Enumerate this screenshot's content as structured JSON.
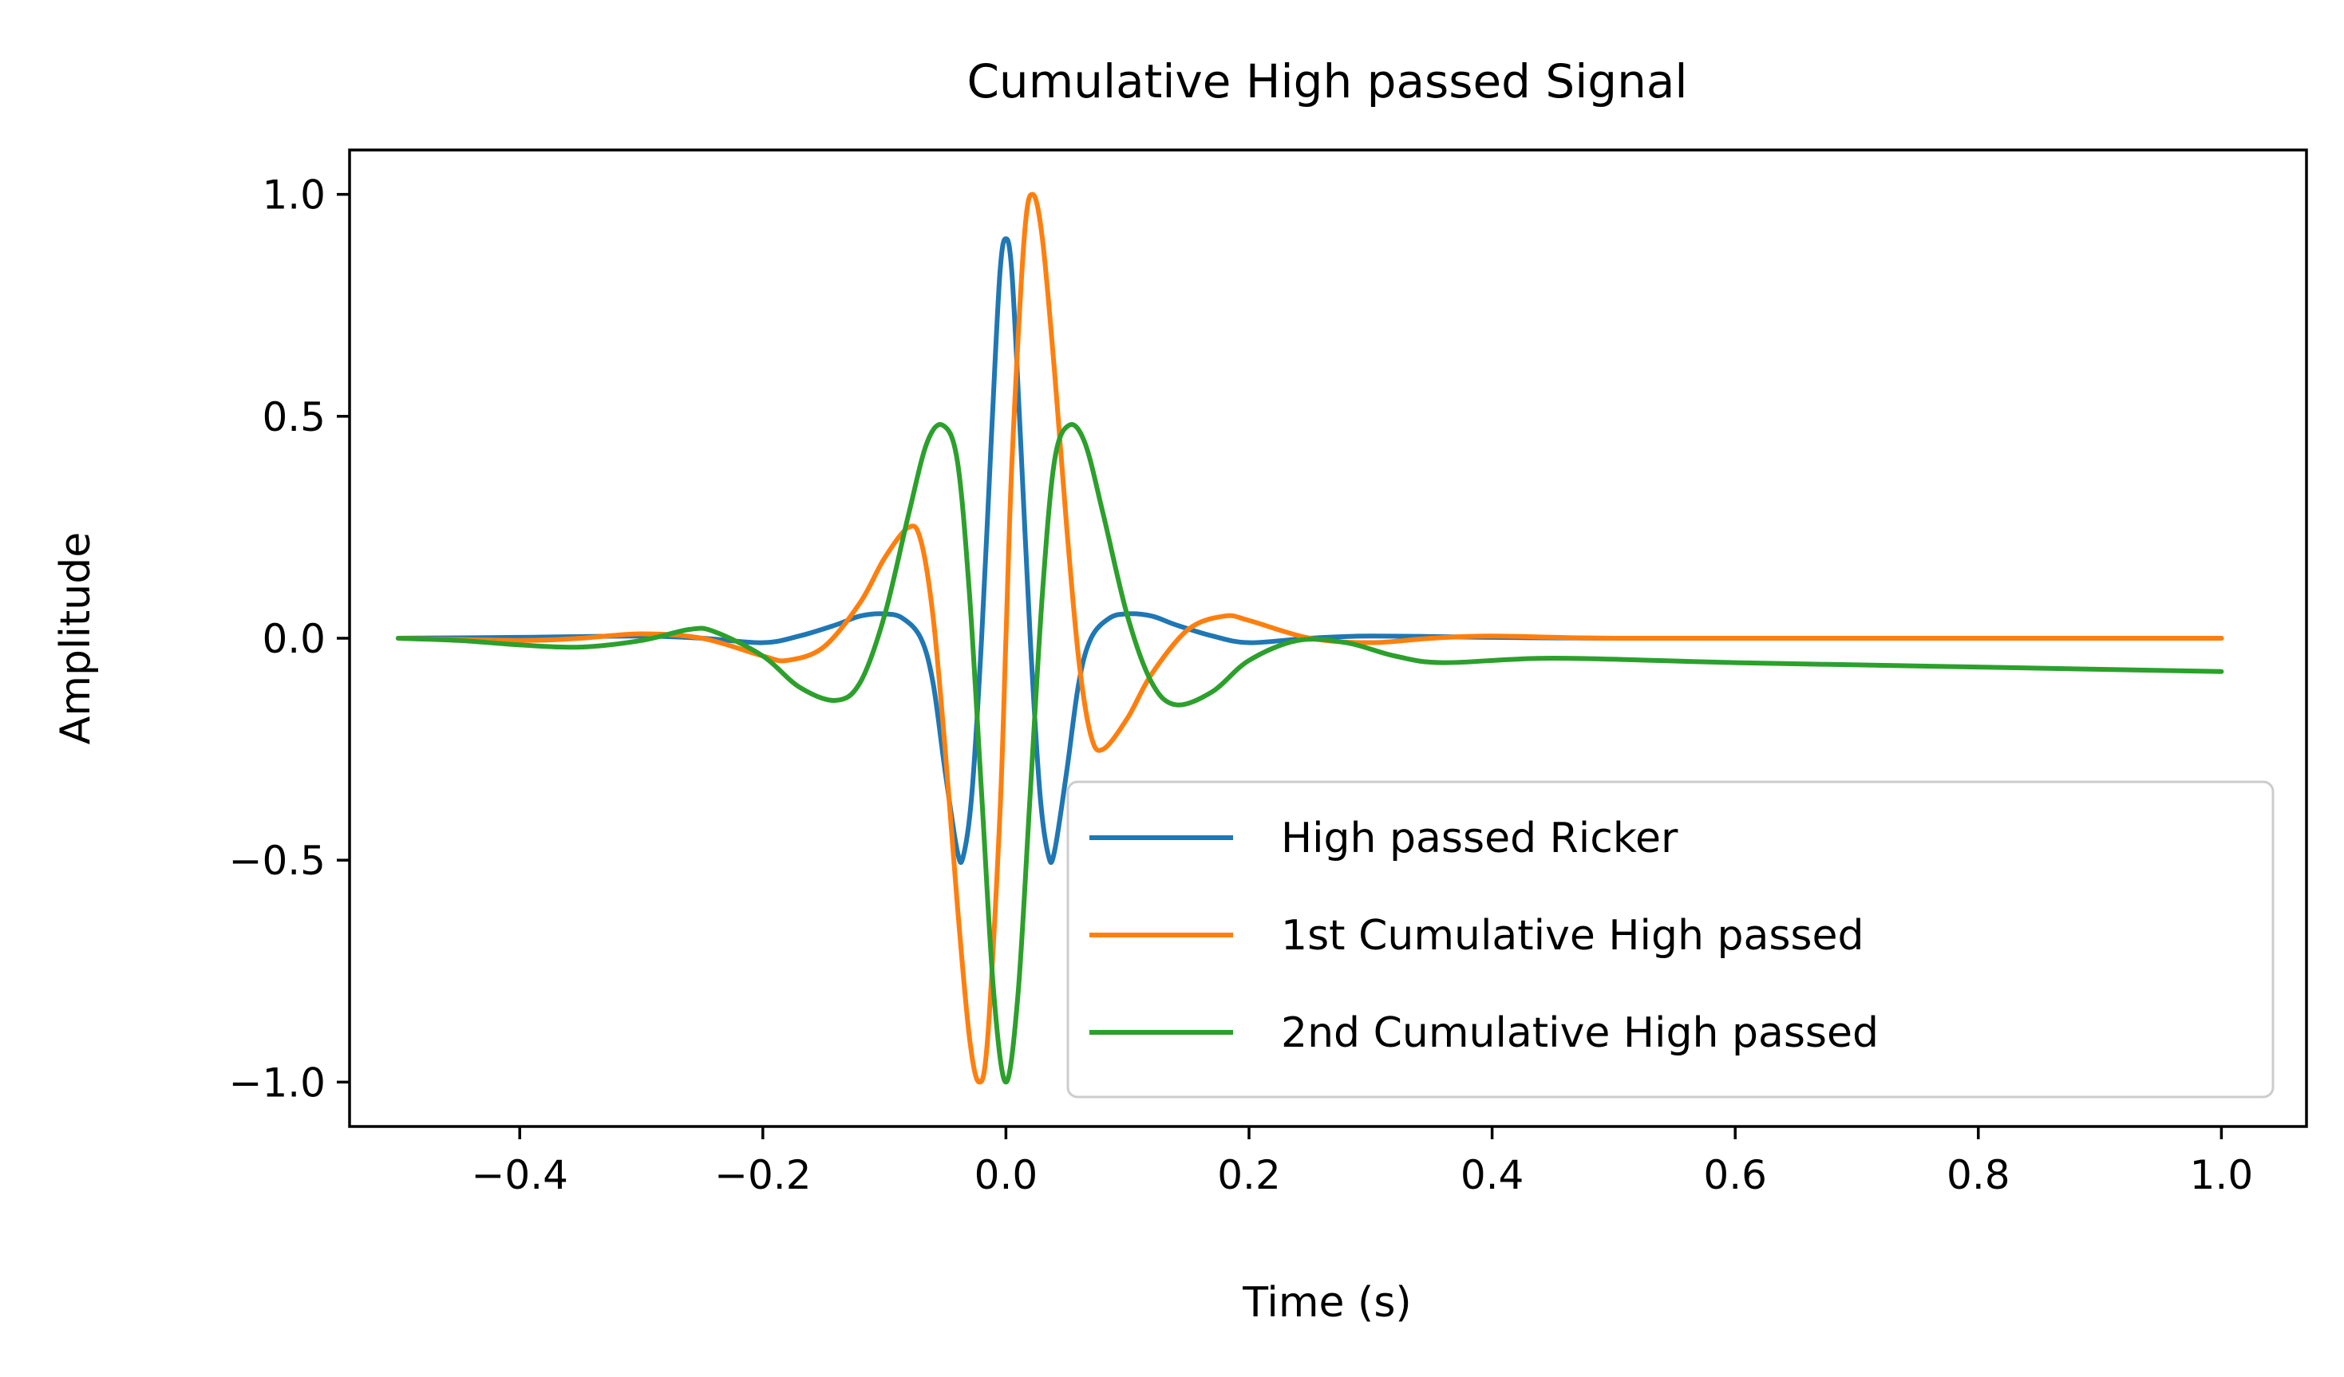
{
  "chart_data": {
    "type": "line",
    "title": "Cumulative High passed Signal",
    "xlabel": "Time (s)",
    "ylabel": "Amplitude",
    "xlim": [
      -0.54,
      1.07
    ],
    "ylim": [
      -1.1,
      1.1
    ],
    "x_ticks": [
      {
        "value": -0.4,
        "label": "−0.4"
      },
      {
        "value": -0.2,
        "label": "−0.2"
      },
      {
        "value": 0.0,
        "label": "0.0"
      },
      {
        "value": 0.2,
        "label": "0.2"
      },
      {
        "value": 0.4,
        "label": "0.4"
      },
      {
        "value": 0.6,
        "label": "0.6"
      },
      {
        "value": 0.8,
        "label": "0.8"
      },
      {
        "value": 1.0,
        "label": "1.0"
      }
    ],
    "y_ticks": [
      {
        "value": 1.0,
        "label": "1.0"
      },
      {
        "value": 0.5,
        "label": "0.5"
      },
      {
        "value": 0.0,
        "label": "0.0"
      },
      {
        "value": -0.5,
        "label": "−0.5"
      },
      {
        "value": -1.0,
        "label": "−1.0"
      }
    ],
    "grid": false,
    "legend_position": "lower-right",
    "series": [
      {
        "name": "High passed Ricker",
        "color": "#1f77b4",
        "points": [
          [
            -0.5,
            0.0
          ],
          [
            -0.4,
            0.002
          ],
          [
            -0.3,
            0.005
          ],
          [
            -0.25,
            0.0
          ],
          [
            -0.2,
            -0.01
          ],
          [
            -0.17,
            0.005
          ],
          [
            -0.14,
            0.03
          ],
          [
            -0.12,
            0.05
          ],
          [
            -0.1,
            0.055
          ],
          [
            -0.085,
            0.045
          ],
          [
            -0.07,
            0.0
          ],
          [
            -0.06,
            -0.1
          ],
          [
            -0.05,
            -0.3
          ],
          [
            -0.04,
            -0.48
          ],
          [
            -0.035,
            -0.49
          ],
          [
            -0.028,
            -0.35
          ],
          [
            -0.02,
            0.0
          ],
          [
            -0.012,
            0.45
          ],
          [
            -0.005,
            0.82
          ],
          [
            0.0,
            0.9
          ],
          [
            0.005,
            0.82
          ],
          [
            0.012,
            0.45
          ],
          [
            0.02,
            0.0
          ],
          [
            0.028,
            -0.35
          ],
          [
            0.035,
            -0.49
          ],
          [
            0.04,
            -0.48
          ],
          [
            0.05,
            -0.3
          ],
          [
            0.06,
            -0.1
          ],
          [
            0.07,
            0.0
          ],
          [
            0.085,
            0.045
          ],
          [
            0.1,
            0.055
          ],
          [
            0.12,
            0.05
          ],
          [
            0.14,
            0.03
          ],
          [
            0.17,
            0.005
          ],
          [
            0.2,
            -0.01
          ],
          [
            0.25,
            0.0
          ],
          [
            0.3,
            0.005
          ],
          [
            0.4,
            0.002
          ],
          [
            0.5,
            0.0
          ],
          [
            0.7,
            0.0
          ],
          [
            1.0,
            0.0
          ]
        ]
      },
      {
        "name": "1st Cumulative High passed",
        "color": "#ff7f0e",
        "points": [
          [
            -0.5,
            0.0
          ],
          [
            -0.4,
            -0.005
          ],
          [
            -0.35,
            0.0
          ],
          [
            -0.3,
            0.01
          ],
          [
            -0.25,
            0.0
          ],
          [
            -0.2,
            -0.04
          ],
          [
            -0.18,
            -0.05
          ],
          [
            -0.15,
            -0.02
          ],
          [
            -0.12,
            0.08
          ],
          [
            -0.1,
            0.18
          ],
          [
            -0.08,
            0.25
          ],
          [
            -0.07,
            0.22
          ],
          [
            -0.06,
            0.05
          ],
          [
            -0.05,
            -0.25
          ],
          [
            -0.04,
            -0.6
          ],
          [
            -0.03,
            -0.9
          ],
          [
            -0.022,
            -1.0
          ],
          [
            -0.015,
            -0.9
          ],
          [
            -0.005,
            -0.4
          ],
          [
            0.0,
            0.0
          ],
          [
            0.005,
            0.4
          ],
          [
            0.015,
            0.9
          ],
          [
            0.022,
            1.0
          ],
          [
            0.03,
            0.9
          ],
          [
            0.04,
            0.6
          ],
          [
            0.05,
            0.25
          ],
          [
            0.06,
            -0.05
          ],
          [
            0.07,
            -0.22
          ],
          [
            0.08,
            -0.25
          ],
          [
            0.1,
            -0.18
          ],
          [
            0.12,
            -0.08
          ],
          [
            0.15,
            0.02
          ],
          [
            0.18,
            0.05
          ],
          [
            0.2,
            0.04
          ],
          [
            0.25,
            0.0
          ],
          [
            0.3,
            -0.01
          ],
          [
            0.35,
            0.0
          ],
          [
            0.4,
            0.005
          ],
          [
            0.5,
            0.0
          ],
          [
            0.7,
            0.0
          ],
          [
            1.0,
            0.0
          ]
        ]
      },
      {
        "name": "2nd Cumulative High passed",
        "color": "#2ca02c",
        "points": [
          [
            -0.5,
            0.0
          ],
          [
            -0.45,
            -0.005
          ],
          [
            -0.4,
            -0.015
          ],
          [
            -0.35,
            -0.02
          ],
          [
            -0.3,
            -0.005
          ],
          [
            -0.26,
            0.02
          ],
          [
            -0.24,
            0.015
          ],
          [
            -0.2,
            -0.04
          ],
          [
            -0.17,
            -0.11
          ],
          [
            -0.14,
            -0.14
          ],
          [
            -0.12,
            -0.1
          ],
          [
            -0.1,
            0.05
          ],
          [
            -0.08,
            0.28
          ],
          [
            -0.065,
            0.44
          ],
          [
            -0.052,
            0.48
          ],
          [
            -0.04,
            0.4
          ],
          [
            -0.03,
            0.1
          ],
          [
            -0.02,
            -0.35
          ],
          [
            -0.01,
            -0.8
          ],
          [
            0.0,
            -1.0
          ],
          [
            0.01,
            -0.8
          ],
          [
            0.02,
            -0.35
          ],
          [
            0.03,
            0.1
          ],
          [
            0.04,
            0.4
          ],
          [
            0.052,
            0.48
          ],
          [
            0.065,
            0.44
          ],
          [
            0.08,
            0.28
          ],
          [
            0.1,
            0.05
          ],
          [
            0.12,
            -0.1
          ],
          [
            0.14,
            -0.15
          ],
          [
            0.17,
            -0.12
          ],
          [
            0.2,
            -0.05
          ],
          [
            0.24,
            -0.005
          ],
          [
            0.28,
            -0.01
          ],
          [
            0.32,
            -0.04
          ],
          [
            0.36,
            -0.055
          ],
          [
            0.45,
            -0.045
          ],
          [
            0.6,
            -0.055
          ],
          [
            0.8,
            -0.065
          ],
          [
            1.0,
            -0.075
          ]
        ]
      }
    ]
  }
}
